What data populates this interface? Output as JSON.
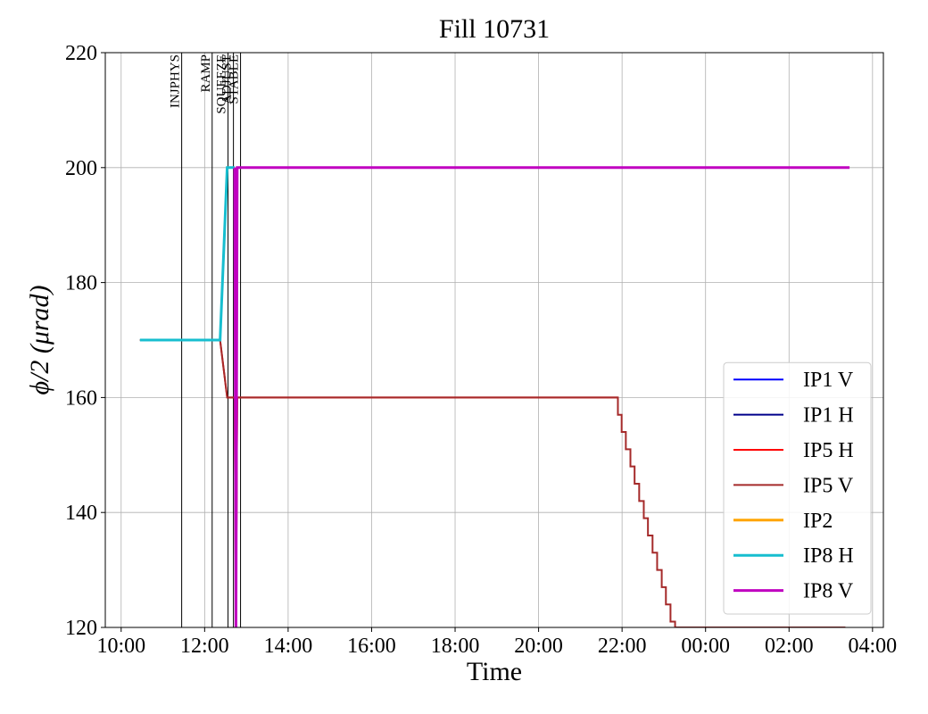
{
  "chart_data": {
    "type": "line",
    "title": "Fill 10731",
    "xlabel": "Time",
    "ylabel": "ϕ/2 (μrad)",
    "xlim": [
      9.62,
      28.26
    ],
    "ylim": [
      120,
      220
    ],
    "xticks": [
      {
        "value": 10,
        "label": "10:00"
      },
      {
        "value": 12,
        "label": "12:00"
      },
      {
        "value": 14,
        "label": "14:00"
      },
      {
        "value": 16,
        "label": "16:00"
      },
      {
        "value": 18,
        "label": "18:00"
      },
      {
        "value": 20,
        "label": "20:00"
      },
      {
        "value": 22,
        "label": "22:00"
      },
      {
        "value": 24,
        "label": "00:00"
      },
      {
        "value": 26,
        "label": "02:00"
      },
      {
        "value": 28,
        "label": "04:00"
      }
    ],
    "yticks": [
      120,
      140,
      160,
      180,
      200,
      220
    ],
    "grid": true,
    "legend": "lower right",
    "events": [
      {
        "label": "INJPHYS",
        "x": 11.45
      },
      {
        "label": "RAMP",
        "x": 12.18
      },
      {
        "label": "SQUEEZE",
        "x": 12.56
      },
      {
        "label": "ADJUST",
        "x": 12.69
      },
      {
        "label": "STABLE",
        "x": 12.86
      }
    ],
    "series": [
      {
        "name": "IP1 V",
        "color": "#0000ff",
        "x": [],
        "values": []
      },
      {
        "name": "IP1 H",
        "color": "#00008b",
        "x": [],
        "values": []
      },
      {
        "name": "IP5 H",
        "color": "#ff0000",
        "x": [
          10.45,
          12.37,
          12.54,
          12.72,
          12.75,
          12.78,
          21.9
        ],
        "values": [
          170,
          170,
          160,
          160,
          120,
          160,
          160
        ]
      },
      {
        "name": "IP5 V",
        "color": "#a52a2a",
        "x": [
          10.45,
          12.37,
          12.54,
          12.72,
          12.75,
          12.78,
          21.9,
          21.9,
          21.99,
          21.99,
          22.09,
          22.09,
          22.2,
          22.2,
          22.3,
          22.3,
          22.41,
          22.41,
          22.52,
          22.52,
          22.62,
          22.62,
          22.73,
          22.73,
          22.84,
          22.84,
          22.95,
          22.95,
          23.05,
          23.05,
          23.16,
          23.16,
          23.27,
          23.27,
          23.31,
          27.35
        ],
        "values": [
          170,
          170,
          160,
          160,
          120,
          160,
          160,
          157,
          157,
          154,
          154,
          151,
          151,
          148,
          148,
          145,
          145,
          142,
          142,
          139,
          139,
          136,
          136,
          133,
          133,
          130,
          130,
          127,
          127,
          124,
          124,
          121,
          121,
          120,
          120,
          120
        ]
      },
      {
        "name": "IP2",
        "color": "#ffa500",
        "x": [],
        "values": []
      },
      {
        "name": "IP8 H",
        "color": "#17becf",
        "x": [
          10.45,
          12.37,
          12.54,
          12.72
        ],
        "values": [
          170,
          170,
          200,
          200
        ]
      },
      {
        "name": "IP8 V",
        "color": "#c000c0",
        "x": [
          12.72,
          12.75,
          12.78,
          27.45
        ],
        "values": [
          200,
          120,
          200,
          200
        ]
      }
    ]
  }
}
